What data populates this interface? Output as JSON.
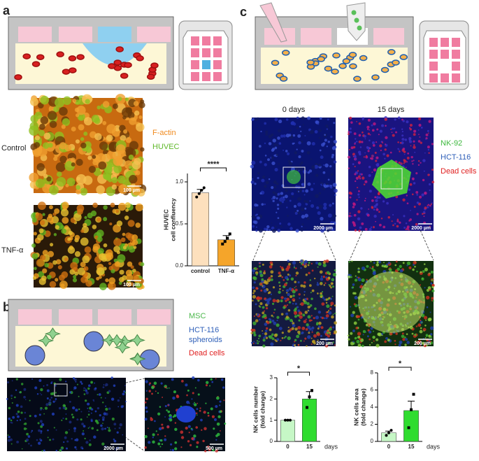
{
  "figure": {
    "panel_labels": [
      "a",
      "b",
      "c"
    ],
    "a": {
      "conditions": [
        "Control",
        "TNF-α"
      ],
      "stains": [
        "F-actin",
        "HUVEC"
      ],
      "scale_bars": [
        "100 µm",
        "100 µm"
      ]
    },
    "b": {
      "legend": [
        "MSC",
        "HCT-116",
        "spheroids",
        "Dead cells"
      ],
      "scale_bars": [
        "2000 µm",
        "500 µm"
      ]
    },
    "c": {
      "timepoints": [
        "0 days",
        "15 days"
      ],
      "legend": [
        "NK-92",
        "HCT-116",
        "Dead cells"
      ],
      "scale_bars": [
        "2000 µm",
        "2000 µm",
        "200 µm",
        "200 µm"
      ]
    }
  },
  "chart_data": [
    {
      "type": "bar",
      "ylabel": [
        "HUVEC",
        "cell confluency"
      ],
      "categories": [
        "control",
        "TNF-α"
      ],
      "values": [
        0.87,
        0.31
      ],
      "errors": [
        0.04,
        0.05
      ],
      "colors": [
        "#fde0bd",
        "#f5a52a"
      ],
      "points": [
        [
          0.82,
          0.86,
          0.9,
          0.93
        ],
        [
          0.26,
          0.29,
          0.33,
          0.38
        ]
      ],
      "ylim": [
        0,
        1.1
      ],
      "yticks": [
        {
          "value": 0,
          "label": "0.0"
        },
        {
          "value": 0.5,
          "label": "0.5"
        },
        {
          "value": 1,
          "label": "1.0"
        }
      ],
      "significance": "****"
    },
    {
      "type": "bar",
      "ylabel": [
        "NK cells number",
        "(fold change)"
      ],
      "categories": [
        "0",
        "15"
      ],
      "xlabel": "days",
      "values": [
        1.0,
        2.0
      ],
      "errors": [
        0.0,
        0.35
      ],
      "colors": [
        "#c6f7c6",
        "#2fdc2f"
      ],
      "points": [
        [
          1.0,
          1.0,
          1.0
        ],
        [
          1.6,
          2.1,
          2.4
        ]
      ],
      "ylim": [
        0,
        3
      ],
      "yticks": [
        0,
        1,
        2,
        3
      ],
      "significance": "*"
    },
    {
      "type": "bar",
      "ylabel": [
        "NK cells area",
        "(fold change)"
      ],
      "categories": [
        "0",
        "15"
      ],
      "xlabel": "days",
      "values": [
        1.0,
        3.6
      ],
      "errors": [
        0.2,
        1.1
      ],
      "colors": [
        "#c6f7c6",
        "#2fdc2f"
      ],
      "points": [
        [
          0.7,
          1.0,
          1.3
        ],
        [
          1.6,
          3.7,
          5.5
        ]
      ],
      "ylim": [
        0,
        8
      ],
      "yticks": [
        0,
        2,
        4,
        6,
        8
      ],
      "significance": "*"
    }
  ]
}
